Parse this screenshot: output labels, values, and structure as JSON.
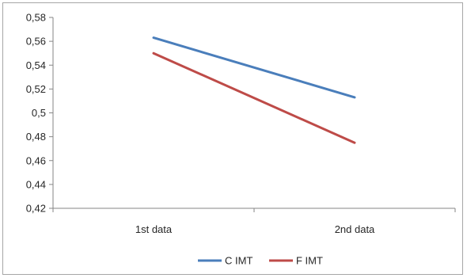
{
  "chart_data": {
    "type": "line",
    "title": "",
    "xlabel": "",
    "ylabel": "",
    "categories": [
      "1st data",
      "2nd data"
    ],
    "ylim": [
      0.42,
      0.58
    ],
    "yticks": [
      "0,42",
      "0,44",
      "0,46",
      "0,48",
      "0,5",
      "0,52",
      "0,54",
      "0,56",
      "0,58"
    ],
    "ytick_values": [
      0.42,
      0.44,
      0.46,
      0.48,
      0.5,
      0.52,
      0.54,
      0.56,
      0.58
    ],
    "grid": false,
    "legend_position": "bottom",
    "series": [
      {
        "name": "C IMT",
        "values": [
          0.563,
          0.513
        ],
        "color": "#4a7ebb"
      },
      {
        "name": "F IMT",
        "values": [
          0.55,
          0.475
        ],
        "color": "#be4b48"
      }
    ]
  }
}
